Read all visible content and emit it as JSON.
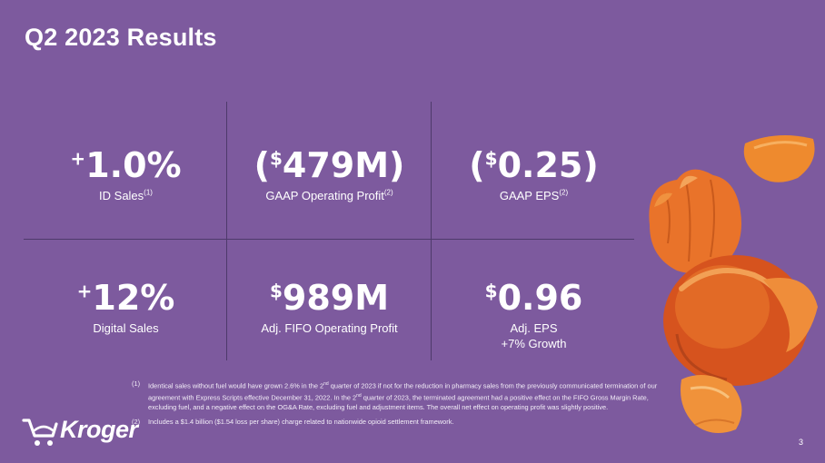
{
  "title": "Q2 2023 Results",
  "metrics": [
    {
      "prefix": "+",
      "number": "1.0%",
      "label": "ID Sales",
      "note": "(1)"
    },
    {
      "open": "(",
      "prefix": "$",
      "number": "479M",
      "close": ")",
      "label": "GAAP Operating Profit",
      "note": "(2)"
    },
    {
      "open": "(",
      "prefix": "$",
      "number": "0.25",
      "close": ")",
      "label": "GAAP EPS",
      "note": "(2)"
    },
    {
      "prefix": "+",
      "number": "12%",
      "label": "Digital Sales"
    },
    {
      "prefix": "$",
      "number": "989M",
      "label": "Adj. FIFO Operating Profit"
    },
    {
      "prefix": "$",
      "number": "0.96",
      "label": "Adj. EPS",
      "label2": "+7% Growth"
    }
  ],
  "footnotes": [
    {
      "num": "(1)",
      "parts": [
        "Identical sales without fuel would have grown 2.6% in the 2",
        "nd",
        " quarter of 2023 if not for the reduction in pharmacy sales from the previously communicated termination of our agreement with Express Scripts effective December 31, 2022. In the 2",
        "nd",
        " quarter of 2023, the terminated agreement had a positive effect on the FIFO Gross Margin Rate, excluding fuel, and a negative effect on the OG&A Rate, excluding fuel and adjustment items. The overall net effect on operating profit was slightly positive."
      ]
    },
    {
      "num": "(2)",
      "text": "Includes a $1.4 billion ($1.54 loss per share) charge related to nationwide opioid settlement framework."
    }
  ],
  "logo": {
    "text": "Kroger",
    "icon": "shopping-cart-icon"
  },
  "page_number": "3",
  "colors": {
    "background": "#7d5a9e",
    "grid": "#4e3a6b",
    "text": "#ffffff",
    "fruit": "#e8772a"
  }
}
